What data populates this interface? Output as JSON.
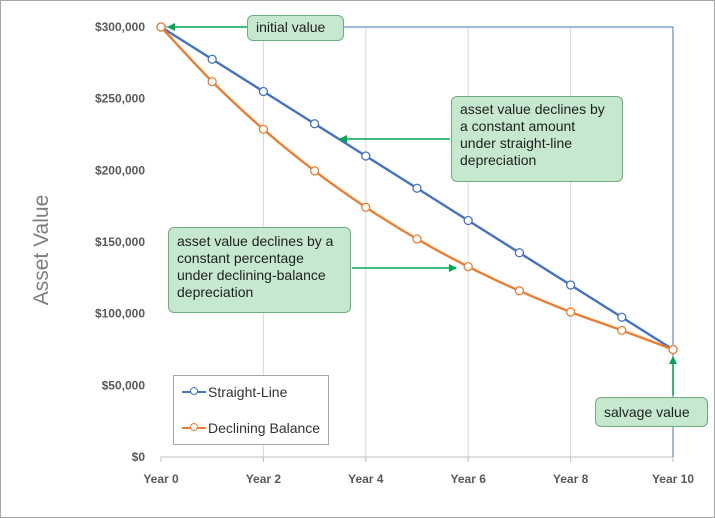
{
  "chart_data": {
    "type": "line",
    "ylabel": "Asset Value",
    "xlabel": "",
    "x_ticks": [
      "Year 0",
      "Year 2",
      "Year 4",
      "Year 6",
      "Year 8",
      "Year 10"
    ],
    "y_ticks": [
      "$0",
      "$50,000",
      "$100,000",
      "$150,000",
      "$200,000",
      "$250,000",
      "$300,000"
    ],
    "ylim": [
      0,
      300000
    ],
    "xlim": [
      0,
      10
    ],
    "grid": "vertical",
    "legend": "bottom-left",
    "x": [
      0,
      1,
      2,
      3,
      4,
      5,
      6,
      7,
      8,
      9,
      10
    ],
    "series": [
      {
        "name": "Straight-Line",
        "color": "#4472c4",
        "values": [
          300000,
          277500,
          255000,
          232500,
          210000,
          187500,
          165000,
          142500,
          120000,
          97500,
          75000
        ]
      },
      {
        "name": "Declining Balance",
        "color": "#ed7d31",
        "values": [
          300000,
          261900,
          228650,
          199600,
          174250,
          152100,
          132800,
          115950,
          101200,
          88350,
          75000
        ]
      }
    ],
    "annotations": [
      {
        "text": "initial value"
      },
      {
        "text": "asset value declines by a constant amount under straight-line depreciation"
      },
      {
        "text": "asset value declines by a constant percentage under declining-balance depreciation"
      },
      {
        "text": "salvage value"
      }
    ]
  },
  "colors": {
    "annotation_fill": "#c6e8cf",
    "arrow": "#00a651",
    "frame_line": "#4472c4"
  }
}
